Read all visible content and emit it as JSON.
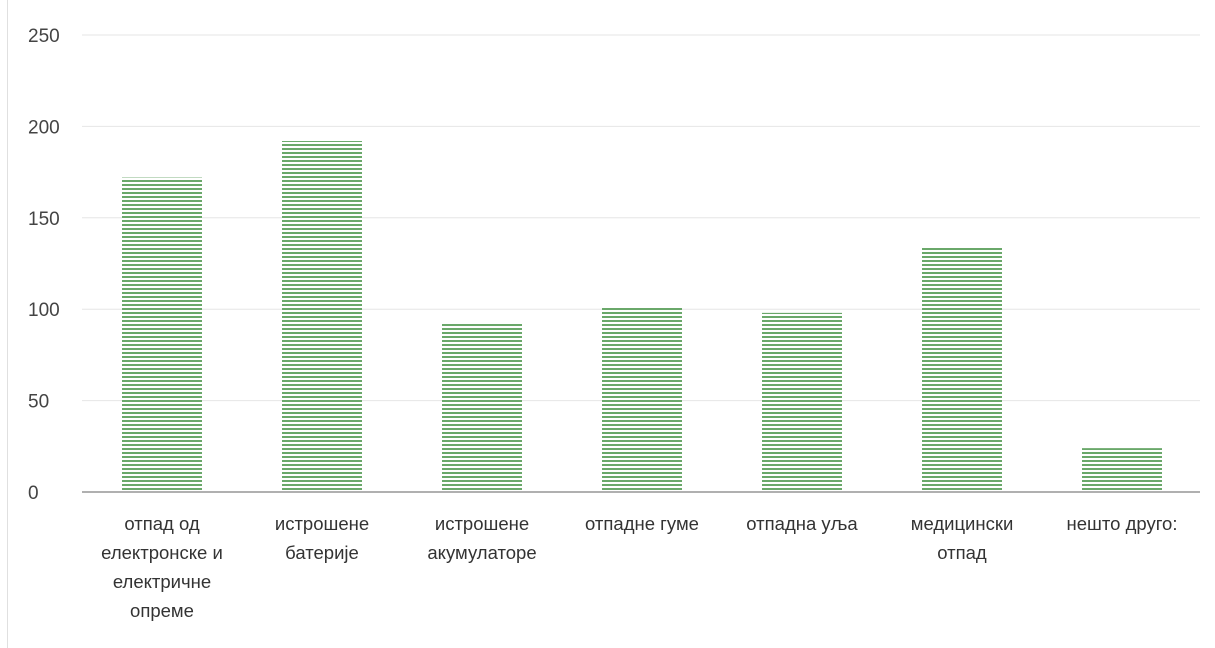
{
  "chart_data": {
    "type": "bar",
    "categories": [
      [
        "отпад од",
        "електронске и",
        "електричне",
        "опреме"
      ],
      [
        "истрошене",
        "батерије"
      ],
      [
        "истрошене",
        "акумулаторе"
      ],
      [
        "отпадне гуме"
      ],
      [
        "отпадна уља"
      ],
      [
        "медицински",
        "отпад"
      ],
      [
        "нешто друго:"
      ]
    ],
    "values": [
      172,
      192,
      92,
      101,
      98,
      134,
      24
    ],
    "ylim": [
      0,
      250
    ],
    "yticks": [
      0,
      50,
      100,
      150,
      200,
      250
    ],
    "grid": true,
    "legend": "none",
    "colors": {
      "bar": "#6aa86a",
      "bar_stripe": "#ffffff",
      "grid": "#e6e6e6",
      "axis": "#b0b0b0"
    }
  }
}
